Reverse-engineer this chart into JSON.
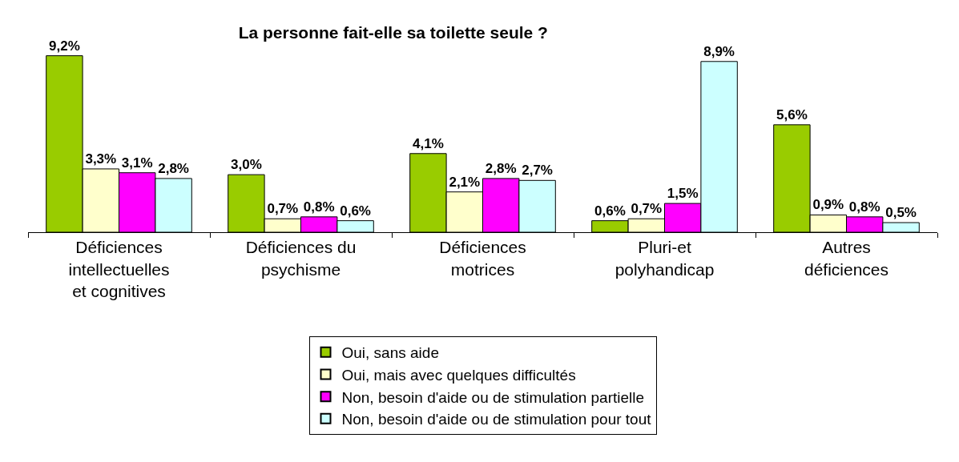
{
  "chart_data": {
    "type": "bar",
    "title": "La personne fait-elle sa toilette seule ?",
    "categories": [
      "Déficiences intellectuelles et cognitives",
      "Déficiences du psychisme",
      "Déficiences motrices",
      "Pluri-et polyhandicap",
      "Autres déficiences"
    ],
    "series": [
      {
        "name": "Oui, sans aide",
        "color": "#99cc00",
        "values": [
          9.2,
          3.0,
          4.1,
          0.6,
          5.6
        ],
        "value_labels": [
          "9,2%",
          "3,0%",
          "4,1%",
          "0,6%",
          "5,6%"
        ]
      },
      {
        "name": "Oui, mais avec quelques difficultés",
        "color": "#ffffcc",
        "values": [
          3.3,
          0.7,
          2.1,
          0.7,
          0.9
        ],
        "value_labels": [
          "3,3%",
          "0,7%",
          "2,1%",
          "0,7%",
          "0,9%"
        ]
      },
      {
        "name": "Non, besoin d'aide ou de stimulation partielle",
        "color": "#ff00ff",
        "values": [
          3.1,
          0.8,
          2.8,
          1.5,
          0.8
        ],
        "value_labels": [
          "3,1%",
          "0,8%",
          "2,8%",
          "1,5%",
          "0,8%"
        ]
      },
      {
        "name": "Non, besoin d'aide ou de stimulation pour tout",
        "color": "#ccffff",
        "values": [
          2.8,
          0.6,
          2.7,
          8.9,
          0.5
        ],
        "value_labels": [
          "2,8%",
          "0,6%",
          "2,7%",
          "8,9%",
          "0,5%"
        ]
      }
    ],
    "tick_labels": "x",
    "grid": false,
    "legend": "bottom"
  }
}
